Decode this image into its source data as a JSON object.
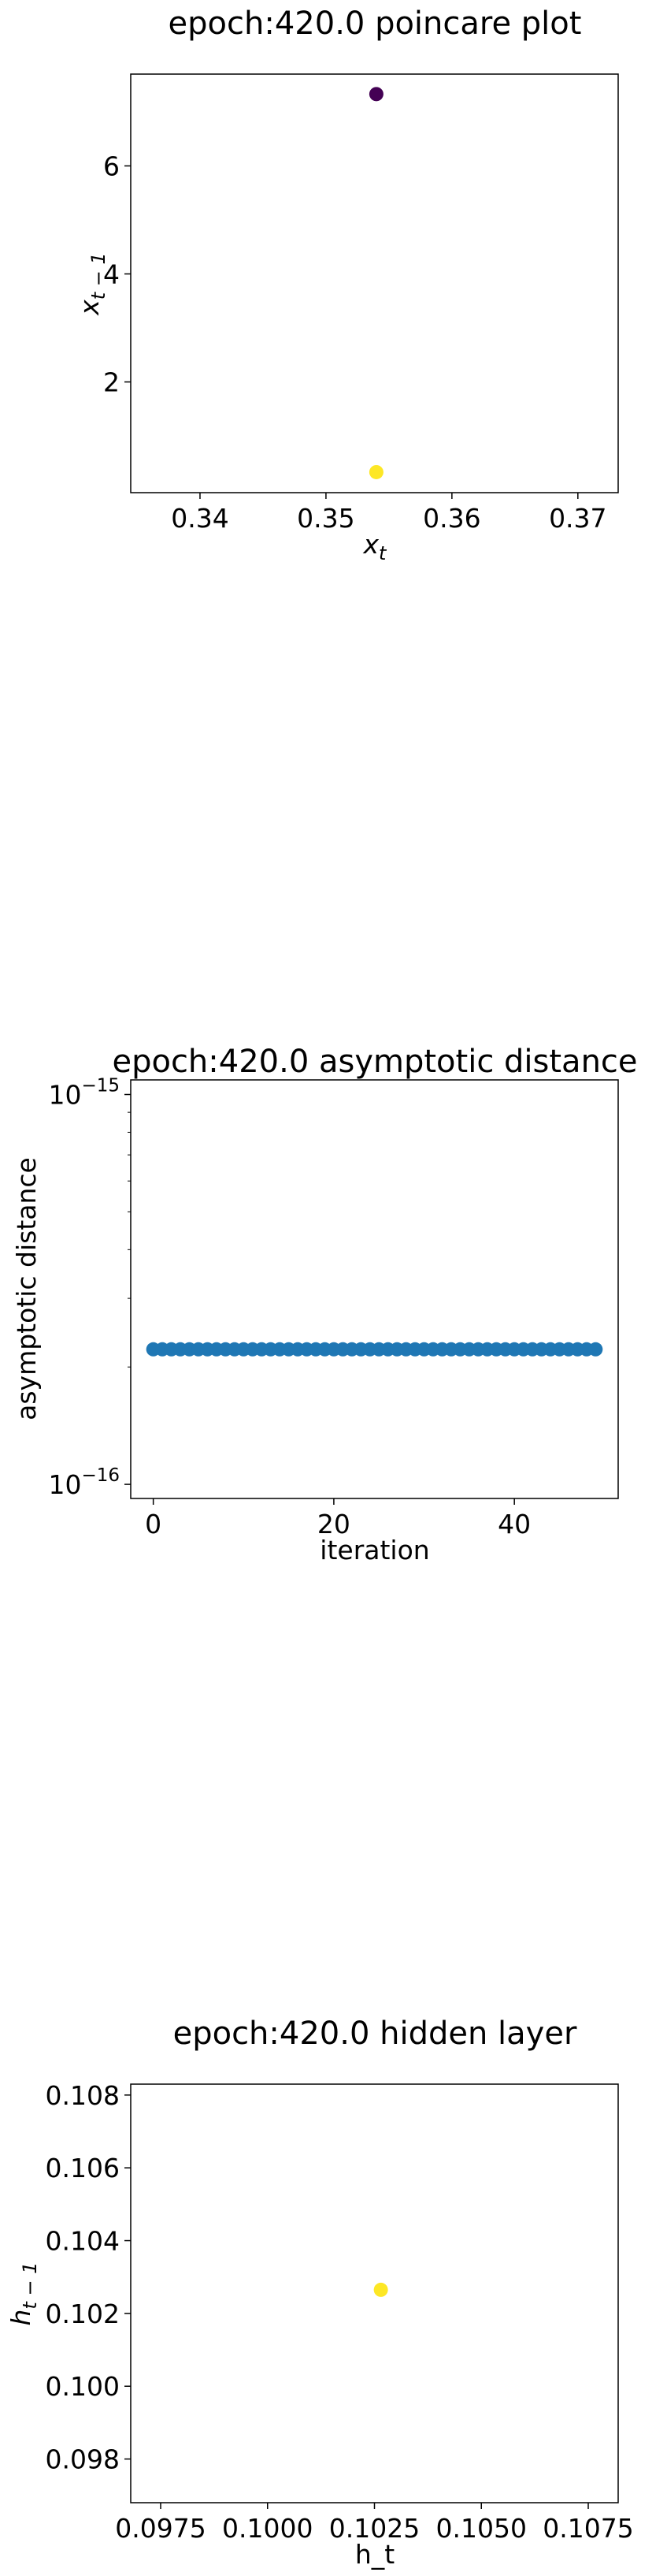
{
  "chart_data": [
    {
      "type": "scatter",
      "title": "epoch:420.0 poincare plot",
      "xlabel": "x_t",
      "ylabel": "x_{t-1}",
      "xlim": [
        0.3345,
        0.3732
      ],
      "ylim": [
        -0.05,
        7.7
      ],
      "xticks": [
        {
          "value": 0.34,
          "label": "0.34"
        },
        {
          "value": 0.35,
          "label": "0.35"
        },
        {
          "value": 0.36,
          "label": "0.36"
        },
        {
          "value": 0.37,
          "label": "0.37"
        }
      ],
      "yticks": [
        {
          "value": 2,
          "label": "2"
        },
        {
          "value": 4,
          "label": "4"
        },
        {
          "value": 6,
          "label": "6"
        }
      ],
      "points": [
        {
          "x": 0.354,
          "y": 7.33,
          "color": "#440154"
        },
        {
          "x": 0.354,
          "y": 0.33,
          "color": "#fde725"
        }
      ]
    },
    {
      "type": "scatter",
      "title": "epoch:420.0 asymptotic distance",
      "xlabel": "iteration",
      "ylabel": "asymptotic distance",
      "yscale": "log",
      "xlim": [
        -2.5,
        51.5
      ],
      "ylim": [
        9.2e-17,
        1.09e-15
      ],
      "series_color": "#1f77b4",
      "xticks": [
        {
          "value": 0,
          "label": "0"
        },
        {
          "value": 20,
          "label": "20"
        },
        {
          "value": 40,
          "label": "40"
        }
      ],
      "yticks": [
        {
          "value": 1e-16,
          "base": "10",
          "exp": "−16"
        },
        {
          "value": 1e-15,
          "base": "10",
          "exp": "−15"
        }
      ],
      "series": [
        {
          "x": [
            0,
            1,
            2,
            3,
            4,
            5,
            6,
            7,
            8,
            9,
            10,
            11,
            12,
            13,
            14,
            15,
            16,
            17,
            18,
            19,
            20,
            21,
            22,
            23,
            24,
            25,
            26,
            27,
            28,
            29,
            30,
            31,
            32,
            33,
            34,
            35,
            36,
            37,
            38,
            39,
            40,
            41,
            42,
            43,
            44,
            45,
            46,
            47,
            48,
            49
          ],
          "values": [
            2.22e-16,
            2.22e-16,
            2.22e-16,
            2.22e-16,
            2.22e-16,
            2.22e-16,
            2.22e-16,
            2.22e-16,
            2.22e-16,
            2.22e-16,
            2.22e-16,
            2.22e-16,
            2.22e-16,
            2.22e-16,
            2.22e-16,
            2.22e-16,
            2.22e-16,
            2.22e-16,
            2.22e-16,
            2.22e-16,
            2.22e-16,
            2.22e-16,
            2.22e-16,
            2.22e-16,
            2.22e-16,
            2.22e-16,
            2.22e-16,
            2.22e-16,
            2.22e-16,
            2.22e-16,
            2.22e-16,
            2.22e-16,
            2.22e-16,
            2.22e-16,
            2.22e-16,
            2.22e-16,
            2.22e-16,
            2.22e-16,
            2.22e-16,
            2.22e-16,
            2.22e-16,
            2.22e-16,
            2.22e-16,
            2.22e-16,
            2.22e-16,
            2.22e-16,
            2.22e-16,
            2.22e-16,
            2.22e-16,
            2.22e-16
          ]
        }
      ]
    },
    {
      "type": "scatter",
      "title": "epoch:420.0 hidden layer",
      "xlabel": "h_t",
      "ylabel": "h_{t-1}",
      "xlim": [
        0.0968,
        0.1082
      ],
      "ylim": [
        0.0968,
        0.1083
      ],
      "xticks": [
        {
          "value": 0.0975,
          "label": "0.0975"
        },
        {
          "value": 0.1,
          "label": "0.1000"
        },
        {
          "value": 0.1025,
          "label": "0.1025"
        },
        {
          "value": 0.105,
          "label": "0.1050"
        },
        {
          "value": 0.1075,
          "label": "0.1075"
        }
      ],
      "yticks": [
        {
          "value": 0.098,
          "label": "0.098"
        },
        {
          "value": 0.1,
          "label": "0.100"
        },
        {
          "value": 0.102,
          "label": "0.102"
        },
        {
          "value": 0.104,
          "label": "0.104"
        },
        {
          "value": 0.106,
          "label": "0.106"
        },
        {
          "value": 0.108,
          "label": "0.108"
        }
      ],
      "points": [
        {
          "x": 0.10265,
          "y": 0.10265,
          "color": "#fde725"
        }
      ]
    }
  ]
}
